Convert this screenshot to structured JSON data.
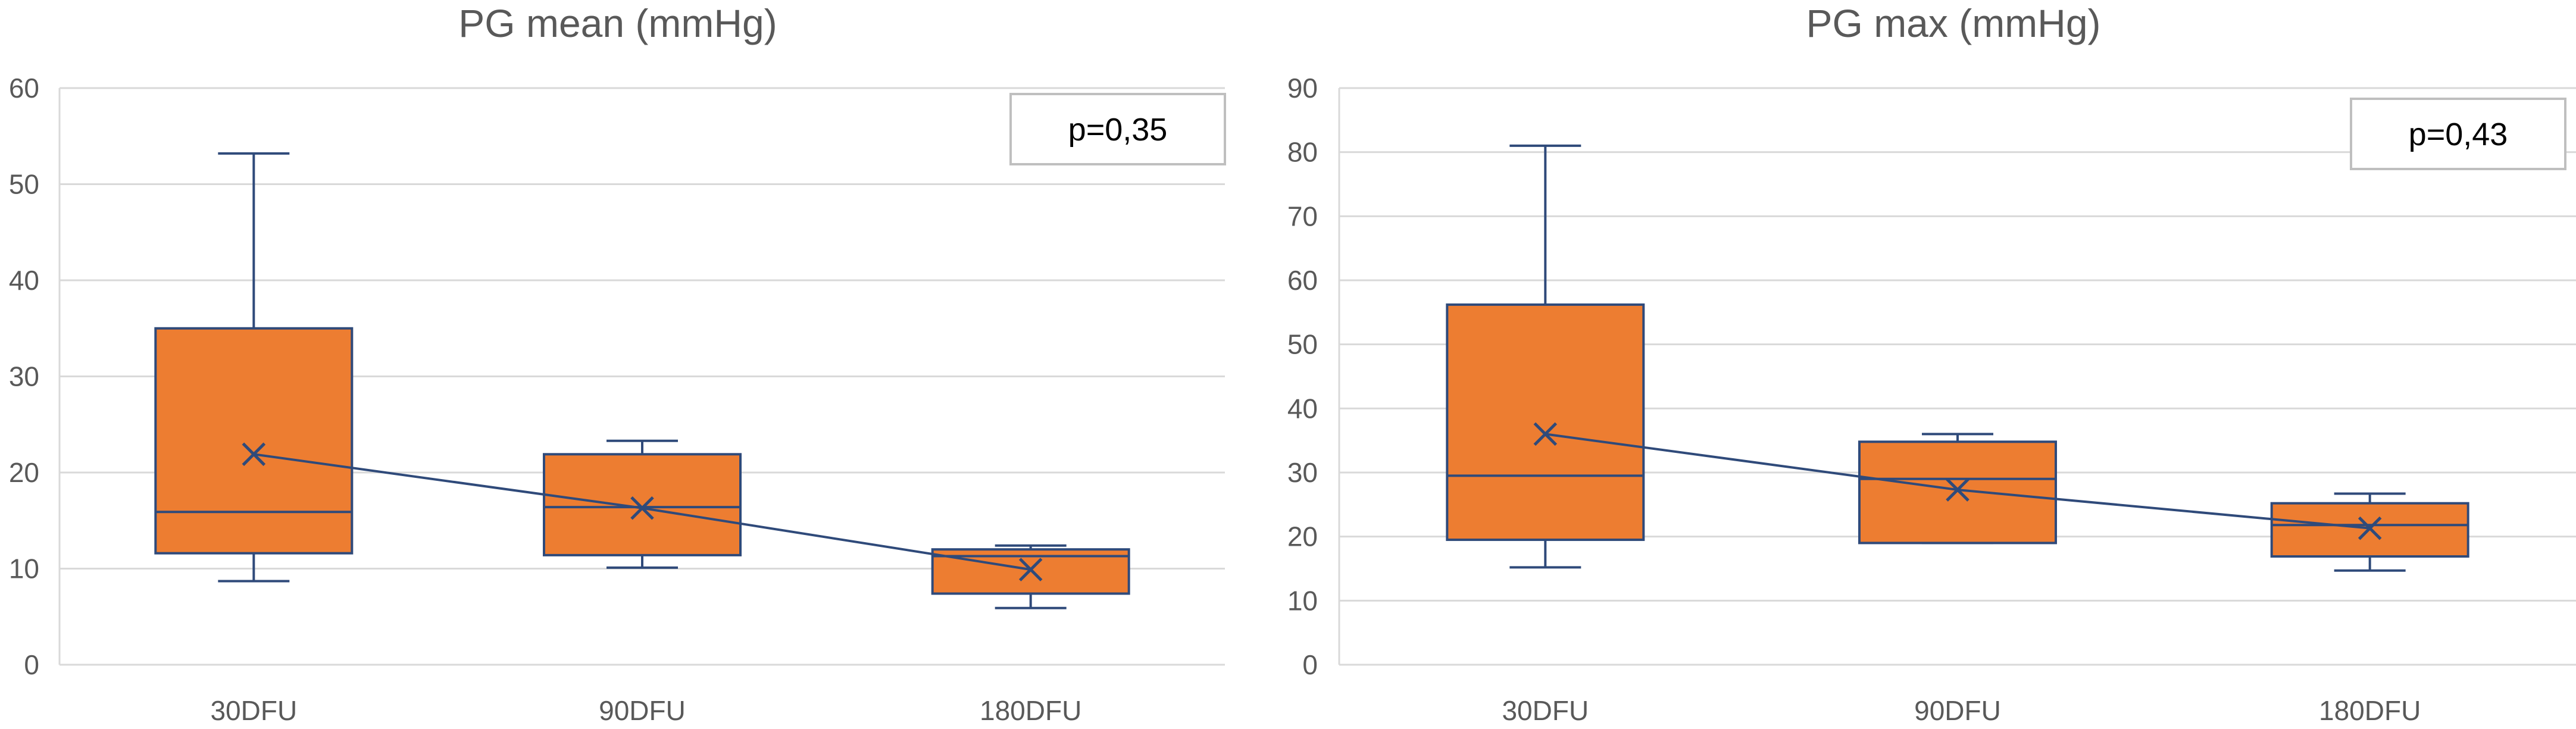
{
  "colors": {
    "box_fill": "#ED7D31",
    "stroke": "#2F4A7A",
    "grid": "#D9D9D9",
    "axis_text": "#595959",
    "annotation_border": "#BFBFBF"
  },
  "chart_data": [
    {
      "type": "box",
      "title": "PG mean (mmHg)",
      "categories": [
        "30DFU",
        "90DFU",
        "180DFU"
      ],
      "ylim": [
        0,
        60
      ],
      "yticks": [
        0,
        10,
        20,
        30,
        40,
        50,
        60
      ],
      "grid": true,
      "boxes": [
        {
          "category": "30DFU",
          "min": 8.7,
          "q1": 11.6,
          "median": 15.9,
          "q3": 35.0,
          "max": 53.2,
          "mean": 21.9
        },
        {
          "category": "90DFU",
          "min": 10.1,
          "q1": 11.4,
          "median": 16.4,
          "q3": 21.9,
          "max": 23.3,
          "mean": 16.3
        },
        {
          "category": "180DFU",
          "min": 5.9,
          "q1": 7.4,
          "median": 11.3,
          "q3": 12.0,
          "max": 12.4,
          "mean": 9.9
        }
      ],
      "annotation": {
        "text": "p=0,35",
        "position": "top-right"
      }
    },
    {
      "type": "box",
      "title": "PG max (mmHg)",
      "categories": [
        "30DFU",
        "90DFU",
        "180DFU"
      ],
      "ylim": [
        0,
        90
      ],
      "yticks": [
        0,
        10,
        20,
        30,
        40,
        50,
        60,
        70,
        80,
        90
      ],
      "grid": true,
      "boxes": [
        {
          "category": "30DFU",
          "min": 15.2,
          "q1": 19.5,
          "median": 29.5,
          "q3": 56.2,
          "max": 81.0,
          "mean": 36.0
        },
        {
          "category": "90DFU",
          "min": 19.0,
          "q1": 19.0,
          "median": 29.0,
          "q3": 34.8,
          "max": 36.0,
          "mean": 27.3
        },
        {
          "category": "180DFU",
          "min": 14.7,
          "q1": 16.9,
          "median": 21.8,
          "q3": 25.2,
          "max": 26.7,
          "mean": 21.3
        }
      ],
      "annotation": {
        "text": "p=0,43",
        "position": "top-right"
      }
    }
  ]
}
